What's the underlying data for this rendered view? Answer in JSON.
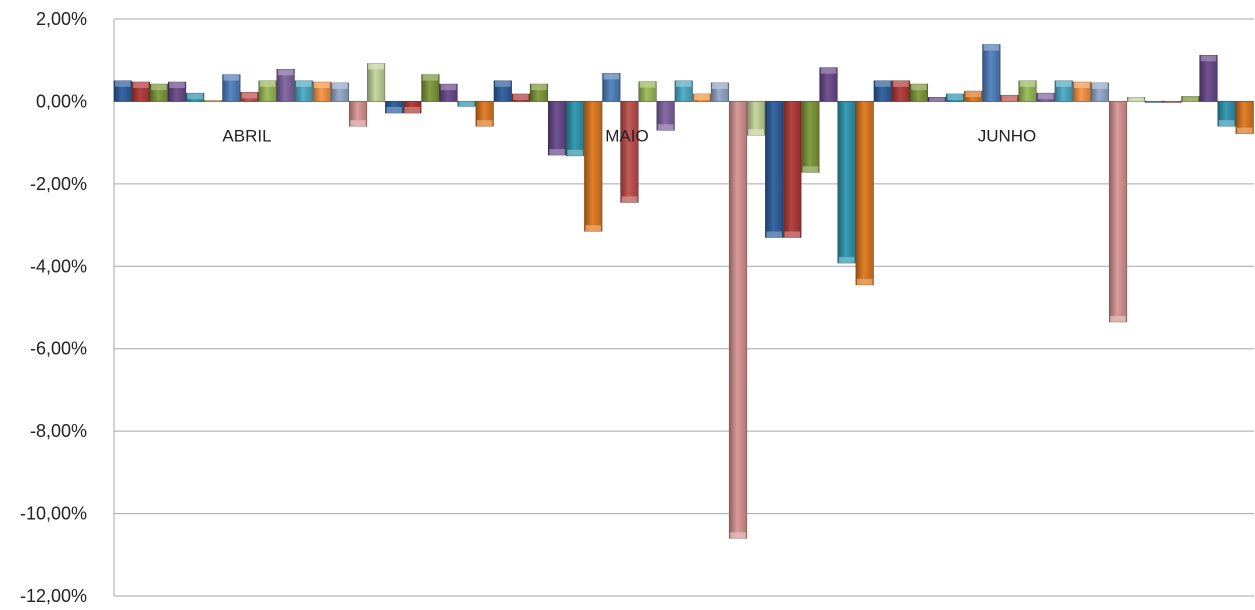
{
  "chart_data": {
    "type": "bar",
    "title": "",
    "xlabel": "",
    "ylabel": "",
    "ylim": [
      -12,
      2
    ],
    "yticks": [
      "2,00%",
      "0,00%",
      "-2,00%",
      "-4,00%",
      "-6,00%",
      "-8,00%",
      "-10,00%",
      "-12,00%"
    ],
    "ytick_values": [
      2,
      0,
      -2,
      -4,
      -6,
      -8,
      -10,
      -12
    ],
    "grid": true,
    "legend": "none",
    "categories": [
      "ABRIL",
      "MAIO",
      "JUNHO"
    ],
    "palette": [
      "#2e5f9e",
      "#b03a38",
      "#7f9a3a",
      "#6a4a8c",
      "#2f97b1",
      "#e0791f",
      "#4f81bd",
      "#c0504d",
      "#9bbb59",
      "#8064a2",
      "#4bacc6",
      "#f79646",
      "#95a9cc",
      "#d99694",
      "#c3d69b"
    ],
    "groups": [
      {
        "name": "ABRIL",
        "values": [
          0.5,
          0.47,
          0.42,
          0.47,
          0.2,
          0.02,
          0.65,
          0.22,
          0.5,
          0.78,
          0.5,
          0.47,
          0.45,
          -0.6,
          0.92,
          -0.28,
          -0.28,
          0.65,
          0.42,
          -0.12,
          -0.6
        ]
      },
      {
        "name": "MAIO",
        "values": [
          0.5,
          0.18,
          0.42,
          -1.3,
          -1.32,
          -3.15,
          0.68,
          -2.45,
          0.48,
          -0.7,
          0.5,
          0.18,
          0.45,
          -10.6,
          -0.82,
          -3.3,
          -3.3,
          -1.72,
          0.82,
          -3.92,
          -4.45
        ]
      },
      {
        "name": "JUNHO",
        "values": [
          0.5,
          0.5,
          0.42,
          0.1,
          0.18,
          0.25,
          1.38,
          0.15,
          0.5,
          0.2,
          0.5,
          0.47,
          0.45,
          -5.35,
          0.1,
          -0.02,
          -0.02,
          0.12,
          1.12,
          -0.6,
          -0.78
        ]
      }
    ]
  }
}
